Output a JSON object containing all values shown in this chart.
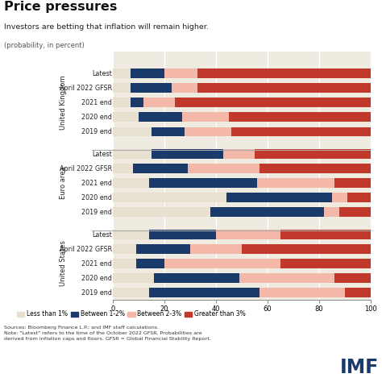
{
  "title": "Price pressures",
  "subtitle": "Investors are betting that inflation will remain higher.",
  "subtitle2": "(probability, in percent)",
  "note": "Sources: Bloomberg Finance L.P.; and IMF staff calculations.\nNote: \"Latest\" refers to the time of the October 2022 GFSR. Probabilities are\nderived from inflation caps and floors. GFSR = Global Financial Stability Report.",
  "groups": [
    "United Kingdom",
    "Euro area",
    "United States"
  ],
  "categories": [
    [
      "Latest",
      "April 2022 GFSR",
      "2021 end",
      "2020 end",
      "2019 end"
    ],
    [
      "Latest",
      "April 2022 GFSR",
      "2021 end",
      "2020 end",
      "2019 end"
    ],
    [
      "Latest",
      "April 2022 GFSR",
      "2021 end",
      "2020 end",
      "2019 end"
    ]
  ],
  "data": {
    "less_than_1": [
      [
        7,
        7,
        7,
        10,
        15
      ],
      [
        15,
        8,
        14,
        44,
        38
      ],
      [
        14,
        9,
        9,
        16,
        14
      ]
    ],
    "between_1_2": [
      [
        13,
        16,
        5,
        17,
        13
      ],
      [
        28,
        21,
        42,
        41,
        44
      ],
      [
        26,
        21,
        11,
        33,
        43
      ]
    ],
    "between_2_3": [
      [
        13,
        10,
        12,
        18,
        18
      ],
      [
        12,
        28,
        30,
        6,
        6
      ],
      [
        25,
        20,
        45,
        37,
        33
      ]
    ],
    "greater_than_3": [
      [
        67,
        67,
        76,
        55,
        54
      ],
      [
        45,
        43,
        14,
        9,
        12
      ],
      [
        35,
        50,
        35,
        14,
        10
      ]
    ]
  },
  "colors": {
    "less_than_1": "#e8e0d0",
    "between_1_2": "#1a3a6b",
    "between_2_3": "#f4b8a8",
    "greater_than_3": "#c0392b"
  },
  "legend_labels": [
    "Less than 1%",
    "Between 1-2%",
    "Between 2-3%",
    "Greater than 3%"
  ],
  "xlim": [
    0,
    100
  ],
  "xticks": [
    0,
    20,
    40,
    60,
    80,
    100
  ],
  "background_color": "#ffffff",
  "plot_bg_color": "#f0ebe0",
  "separator_color": "#aaaaaa",
  "imf_color": "#1a3a6b"
}
